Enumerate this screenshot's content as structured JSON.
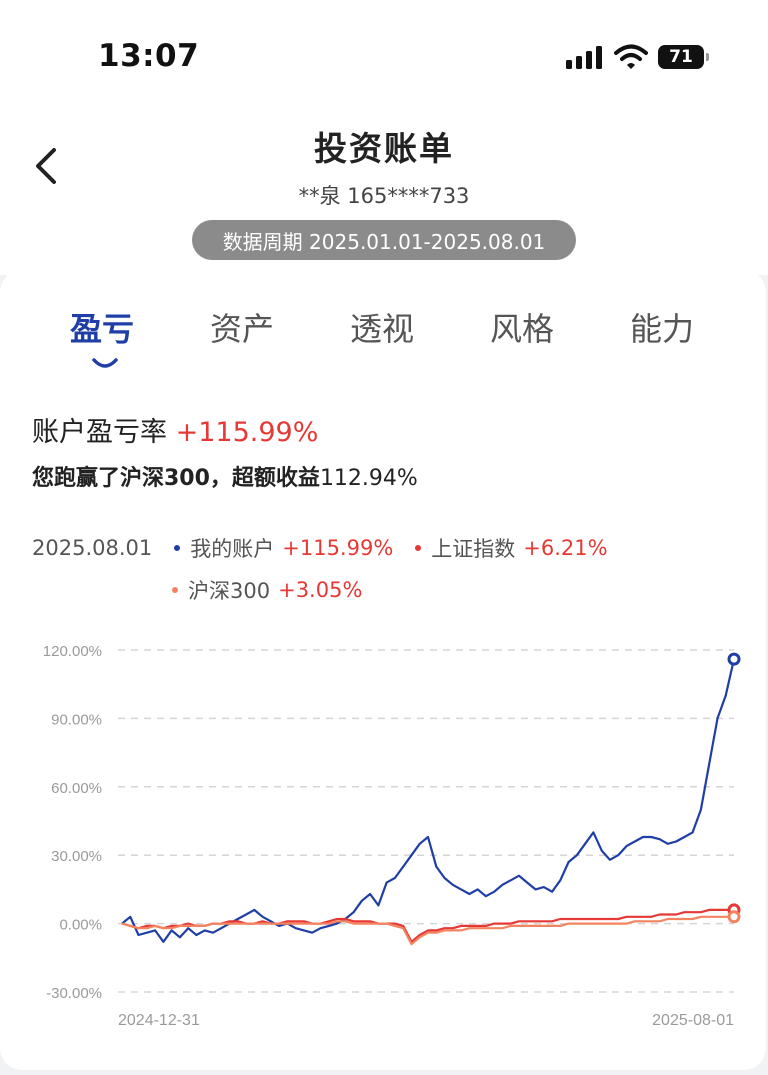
{
  "status_bar": {
    "time": "13:07",
    "battery": "71"
  },
  "header": {
    "title": "投资账单",
    "account": "**泉 165****733",
    "period": "数据周期 2025.01.01-2025.08.01"
  },
  "tabs": [
    "盈亏",
    "资产",
    "透视",
    "风格",
    "能力"
  ],
  "active_tab": 0,
  "metric": {
    "label": "账户盈亏率",
    "value": "+115.99%"
  },
  "summary": {
    "text": "您跑赢了沪深300，超额收益",
    "value": "112.94%"
  },
  "legend": {
    "date": "2025.08.01",
    "items": [
      {
        "name": "我的账户",
        "value": "+115.99%",
        "color": "#1f3fa6"
      },
      {
        "name": "上证指数",
        "value": "+6.21%",
        "color": "#e53935"
      },
      {
        "name": "沪深300",
        "value": "+3.05%",
        "color": "#f4845f"
      }
    ]
  },
  "chart_data": {
    "type": "line",
    "ylim": [
      -30,
      120
    ],
    "yticks": [
      "120.00%",
      "90.00%",
      "60.00%",
      "30.00%",
      "0.00%",
      "-30.00%"
    ],
    "ytick_values": [
      120,
      90,
      60,
      30,
      0,
      -30
    ],
    "x_start_label": "2024-12-31",
    "x_end_label": "2025-08-01",
    "grid": true,
    "series": [
      {
        "name": "我的账户",
        "color": "#1f3fa6",
        "values": [
          0,
          3,
          -5,
          -4,
          -3,
          -8,
          -3,
          -6,
          -2,
          -5,
          -3,
          -4,
          -2,
          0,
          2,
          4,
          6,
          3,
          1,
          -1,
          0,
          -2,
          -3,
          -4,
          -2,
          -1,
          0,
          2,
          5,
          10,
          13,
          8,
          18,
          20,
          25,
          30,
          35,
          38,
          25,
          20,
          17,
          15,
          13,
          15,
          12,
          14,
          17,
          19,
          21,
          18,
          15,
          16,
          14,
          19,
          27,
          30,
          35,
          40,
          32,
          28,
          30,
          34,
          36,
          38,
          38,
          37,
          35,
          36,
          38,
          40,
          50,
          70,
          90,
          100,
          116
        ]
      },
      {
        "name": "上证指数",
        "color": "#e53935",
        "values": [
          0,
          -1,
          -2,
          -1,
          -1,
          -2,
          -1,
          -1,
          0,
          -1,
          -1,
          0,
          0,
          1,
          1,
          0,
          0,
          1,
          0,
          0,
          1,
          1,
          1,
          0,
          0,
          1,
          2,
          2,
          1,
          1,
          1,
          0,
          0,
          0,
          -1,
          -8,
          -5,
          -3,
          -3,
          -2,
          -2,
          -1,
          -1,
          -1,
          -1,
          0,
          0,
          0,
          1,
          1,
          1,
          1,
          1,
          2,
          2,
          2,
          2,
          2,
          2,
          2,
          2,
          3,
          3,
          3,
          3,
          4,
          4,
          4,
          5,
          5,
          5,
          6,
          6,
          6,
          6
        ]
      },
      {
        "name": "沪深300",
        "color": "#f4845f",
        "values": [
          0,
          -1,
          -2,
          -2,
          -1,
          -2,
          -2,
          -1,
          -1,
          -1,
          -1,
          0,
          0,
          0,
          0,
          0,
          0,
          0,
          0,
          0,
          0,
          0,
          0,
          0,
          0,
          0,
          1,
          1,
          0,
          0,
          0,
          0,
          0,
          -1,
          -2,
          -9,
          -6,
          -4,
          -4,
          -3,
          -3,
          -3,
          -2,
          -2,
          -2,
          -2,
          -2,
          -1,
          -1,
          -1,
          -1,
          -1,
          -1,
          -1,
          0,
          0,
          0,
          0,
          0,
          0,
          0,
          0,
          1,
          1,
          1,
          1,
          2,
          2,
          2,
          2,
          3,
          3,
          3,
          3,
          3
        ]
      }
    ]
  }
}
